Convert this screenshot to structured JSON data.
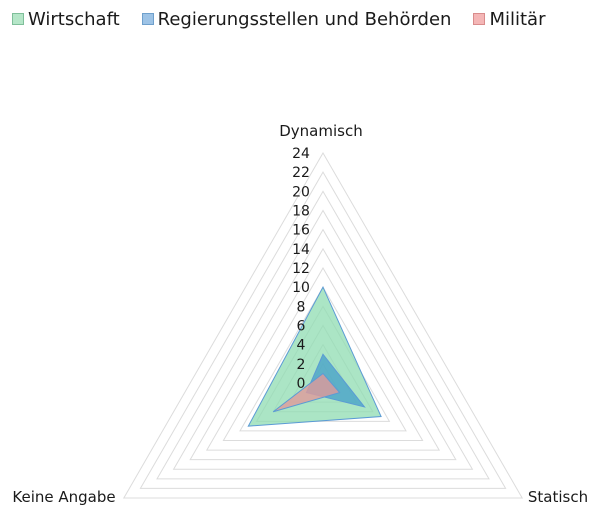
{
  "chart_data": {
    "type": "radar",
    "title": "",
    "categories": [
      "Dynamisch",
      "Statisch",
      "Keine Angabe"
    ],
    "series": [
      {
        "name": "Wirtschaft",
        "values": [
          10,
          7,
          9
        ],
        "fill": "#8fdcb2",
        "stroke": "#5b9bd5"
      },
      {
        "name": "Regierungsstellen und Behörden",
        "values": [
          3,
          5,
          2
        ],
        "fill": "#4aa3c8",
        "stroke": "#5b9bd5"
      },
      {
        "name": "Militär",
        "values": [
          1,
          2,
          6
        ],
        "fill": "#e09a9a",
        "stroke": "#5b9bd5"
      }
    ],
    "radial_ticks": [
      "0",
      "2",
      "4",
      "6",
      "8",
      "10",
      "12",
      "14",
      "16",
      "18",
      "20",
      "22",
      "24"
    ],
    "rlim": [
      0,
      24
    ],
    "grid": true,
    "legend_position": "top"
  },
  "legend": [
    {
      "label": "Wirtschaft",
      "color": "#b5e6c8",
      "border": "#7fbf9a"
    },
    {
      "label": "Regierungsstellen und Behörden",
      "color": "#9dc3e6",
      "border": "#6fa0cc"
    },
    {
      "label": "Militär",
      "color": "#f4b6b6",
      "border": "#d98c8c"
    }
  ]
}
